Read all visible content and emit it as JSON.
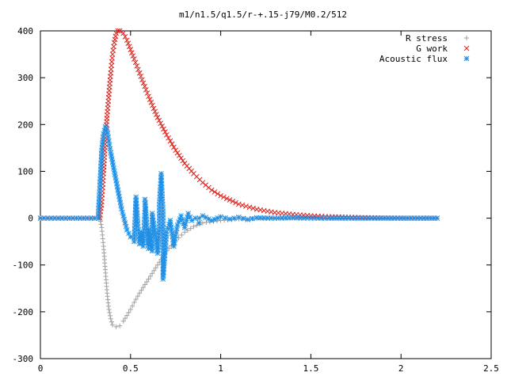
{
  "chart_data": {
    "type": "scatter",
    "title": "m1/n1.5/q1.5/r-+.15-j79/M0.2/512",
    "xlabel": "",
    "ylabel": "",
    "xlim": [
      0,
      2.5
    ],
    "ylim": [
      -300,
      400
    ],
    "xticks": [
      "0",
      "0.5",
      "1",
      "1.5",
      "2",
      "2.5"
    ],
    "yticks": [
      "400",
      "300",
      "200",
      "100",
      "0",
      "-100",
      "-200",
      "-300"
    ],
    "grid": false,
    "legend_position": "top-right",
    "series": [
      {
        "name": "R stress",
        "marker": "plus",
        "color": "#a0a0a0",
        "points": [
          [
            0.0,
            0
          ],
          [
            0.1,
            0
          ],
          [
            0.2,
            0
          ],
          [
            0.3,
            0
          ],
          [
            0.33,
            0
          ],
          [
            0.34,
            -20
          ],
          [
            0.35,
            -60
          ],
          [
            0.36,
            -110
          ],
          [
            0.37,
            -160
          ],
          [
            0.38,
            -195
          ],
          [
            0.39,
            -215
          ],
          [
            0.4,
            -228
          ],
          [
            0.42,
            -232
          ],
          [
            0.44,
            -230
          ],
          [
            0.46,
            -220
          ],
          [
            0.48,
            -208
          ],
          [
            0.5,
            -195
          ],
          [
            0.52,
            -180
          ],
          [
            0.55,
            -160
          ],
          [
            0.6,
            -130
          ],
          [
            0.65,
            -100
          ],
          [
            0.7,
            -70
          ],
          [
            0.75,
            -48
          ],
          [
            0.8,
            -30
          ],
          [
            0.85,
            -18
          ],
          [
            0.9,
            -10
          ],
          [
            1.0,
            -5
          ],
          [
            1.1,
            -2
          ],
          [
            1.2,
            -1
          ],
          [
            1.4,
            0
          ],
          [
            1.6,
            0
          ],
          [
            1.8,
            0
          ],
          [
            2.0,
            0
          ],
          [
            2.2,
            0
          ]
        ]
      },
      {
        "name": "G work",
        "marker": "x",
        "color": "#e0201b",
        "points": [
          [
            0.0,
            0
          ],
          [
            0.1,
            0
          ],
          [
            0.2,
            0
          ],
          [
            0.3,
            0
          ],
          [
            0.33,
            0
          ],
          [
            0.34,
            35
          ],
          [
            0.35,
            95
          ],
          [
            0.36,
            165
          ],
          [
            0.37,
            220
          ],
          [
            0.38,
            265
          ],
          [
            0.39,
            310
          ],
          [
            0.4,
            350
          ],
          [
            0.41,
            375
          ],
          [
            0.42,
            395
          ],
          [
            0.43,
            400
          ],
          [
            0.44,
            400
          ],
          [
            0.46,
            395
          ],
          [
            0.48,
            380
          ],
          [
            0.5,
            360
          ],
          [
            0.52,
            340
          ],
          [
            0.55,
            310
          ],
          [
            0.6,
            260
          ],
          [
            0.65,
            215
          ],
          [
            0.7,
            178
          ],
          [
            0.75,
            145
          ],
          [
            0.8,
            117
          ],
          [
            0.85,
            95
          ],
          [
            0.9,
            76
          ],
          [
            0.95,
            60
          ],
          [
            1.0,
            48
          ],
          [
            1.1,
            30
          ],
          [
            1.2,
            19
          ],
          [
            1.3,
            12
          ],
          [
            1.4,
            8
          ],
          [
            1.5,
            5
          ],
          [
            1.6,
            3
          ],
          [
            1.8,
            1
          ],
          [
            2.0,
            0
          ],
          [
            2.2,
            0
          ]
        ]
      },
      {
        "name": "Acoustic flux",
        "marker": "star",
        "color": "#1f8fe5",
        "points": [
          [
            0.0,
            0
          ],
          [
            0.1,
            0
          ],
          [
            0.2,
            0
          ],
          [
            0.3,
            0
          ],
          [
            0.32,
            0
          ],
          [
            0.33,
            70
          ],
          [
            0.34,
            145
          ],
          [
            0.35,
            180
          ],
          [
            0.36,
            195
          ],
          [
            0.37,
            190
          ],
          [
            0.38,
            165
          ],
          [
            0.39,
            140
          ],
          [
            0.4,
            120
          ],
          [
            0.41,
            100
          ],
          [
            0.42,
            80
          ],
          [
            0.43,
            60
          ],
          [
            0.44,
            40
          ],
          [
            0.45,
            20
          ],
          [
            0.46,
            5
          ],
          [
            0.47,
            -10
          ],
          [
            0.48,
            -25
          ],
          [
            0.5,
            -40
          ],
          [
            0.52,
            -50
          ],
          [
            0.55,
            -55
          ],
          [
            0.57,
            -60
          ],
          [
            0.6,
            -65
          ],
          [
            0.62,
            -70
          ],
          [
            0.54,
            -10
          ],
          [
            0.56,
            -30
          ],
          [
            0.58,
            20
          ],
          [
            0.6,
            -25
          ],
          [
            0.62,
            10
          ],
          [
            0.64,
            -40
          ],
          [
            0.66,
            -20
          ],
          [
            0.68,
            15
          ],
          [
            0.7,
            -30
          ],
          [
            0.72,
            -5
          ],
          [
            0.74,
            -60
          ],
          [
            0.76,
            -15
          ],
          [
            0.78,
            5
          ],
          [
            0.8,
            -20
          ],
          [
            0.82,
            10
          ],
          [
            0.84,
            -5
          ],
          [
            0.86,
            0
          ],
          [
            0.88,
            -10
          ],
          [
            0.9,
            5
          ],
          [
            0.95,
            -5
          ],
          [
            1.0,
            3
          ],
          [
            1.05,
            -2
          ],
          [
            1.1,
            2
          ],
          [
            1.15,
            -3
          ],
          [
            1.2,
            1
          ],
          [
            1.3,
            0
          ],
          [
            1.4,
            1
          ],
          [
            1.5,
            0
          ],
          [
            0.53,
            45
          ],
          [
            0.58,
            40
          ],
          [
            0.66,
            30
          ],
          [
            0.68,
            -130
          ],
          [
            0.67,
            95
          ],
          [
            0.65,
            -75
          ],
          [
            0.88,
            0
          ],
          [
            1.6,
            0
          ],
          [
            1.8,
            0
          ],
          [
            2.0,
            0
          ],
          [
            2.2,
            0
          ]
        ]
      }
    ]
  }
}
